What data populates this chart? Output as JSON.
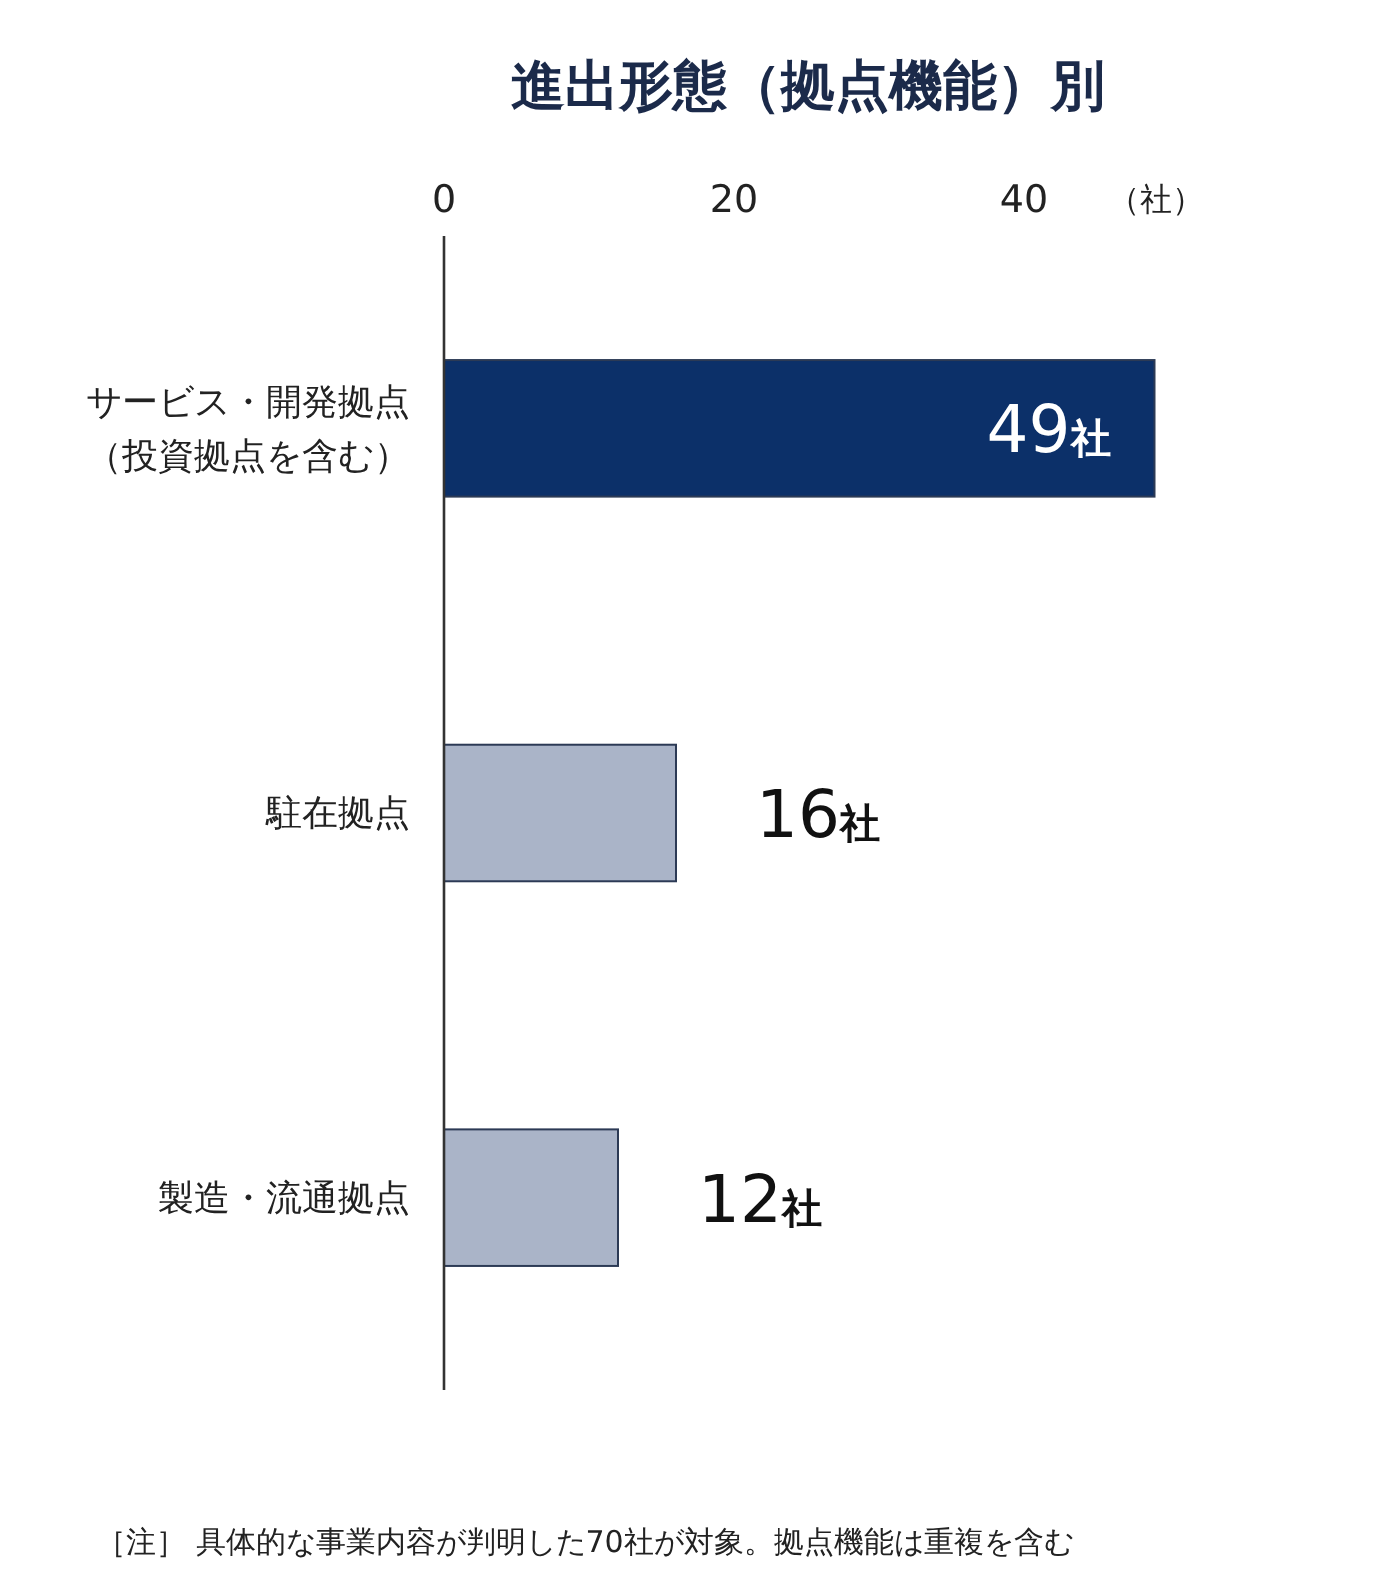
{
  "chart_data": {
    "type": "bar",
    "orientation": "horizontal",
    "title": "進出形態（拠点機能）別",
    "xlabel": "（社）",
    "categories": [
      "サービス・開発拠点（投資拠点を含む）",
      "駐在拠点",
      "製造・流通拠点"
    ],
    "values": [
      49,
      16,
      12
    ],
    "colors": [
      "#0c3069",
      "#aab4c8",
      "#aab4c8"
    ],
    "value_labels": [
      "49社",
      "16社",
      "12社"
    ],
    "xlim": [
      0,
      49
    ],
    "xticks": [
      0,
      20,
      40
    ],
    "annotations": [
      "［注］ 具体的な事業内容が判明した70社が対象。拠点機能は重複を含む"
    ]
  }
}
